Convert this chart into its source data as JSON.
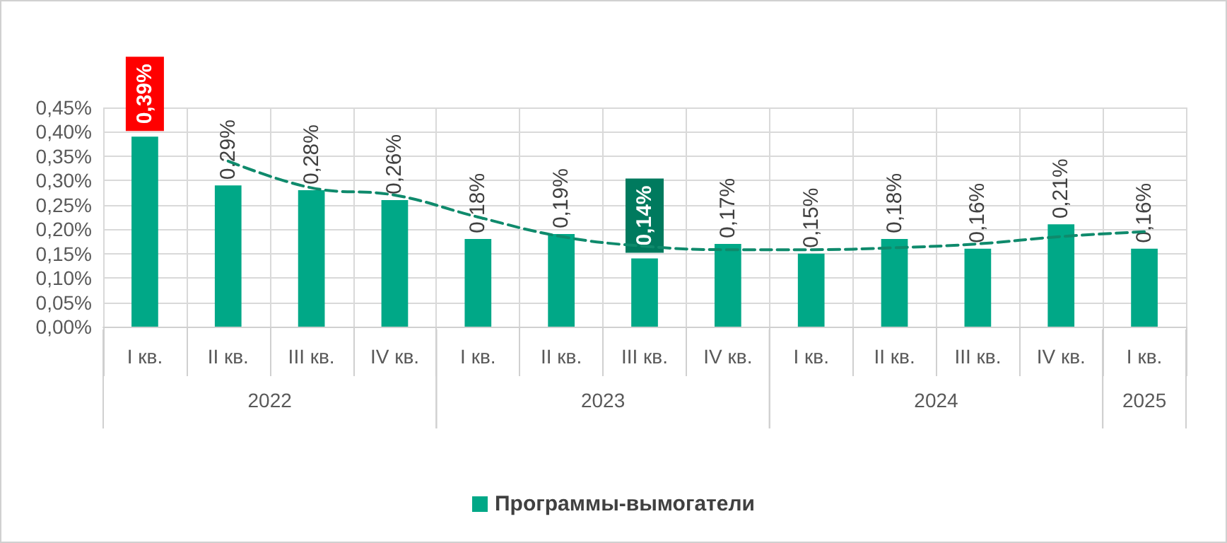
{
  "chart_data": {
    "type": "bar",
    "categories": [
      "I кв.",
      "II кв.",
      "III кв.",
      "IV кв.",
      "I кв.",
      "II кв.",
      "III кв.",
      "IV кв.",
      "I кв.",
      "II кв.",
      "III кв.",
      "IV кв.",
      "I кв."
    ],
    "series": [
      {
        "name": "Программы-вымогатели",
        "color": "#00a887",
        "values": [
          0.39,
          0.29,
          0.28,
          0.26,
          0.18,
          0.19,
          0.14,
          0.17,
          0.15,
          0.18,
          0.16,
          0.21,
          0.16
        ],
        "value_labels": [
          "0,39%",
          "0,29%",
          "0,28%",
          "0,26%",
          "0,18%",
          "0,19%",
          "0,14%",
          "0,17%",
          "0,15%",
          "0,18%",
          "0,16%",
          "0,21%",
          "0,16%"
        ]
      },
      {
        "type": "line",
        "color": "#0f8a6c",
        "line_style": "dashed",
        "marker": "none",
        "values": [
          null,
          0.34,
          0.285,
          0.27,
          0.225,
          0.185,
          0.165,
          0.158,
          0.158,
          0.162,
          0.17,
          0.185,
          0.195
        ]
      }
    ],
    "ylim": [
      0,
      0.45
    ],
    "yticks": [
      {
        "value": 0,
        "label": "0,00%"
      },
      {
        "value": 0.05,
        "label": "0,05%"
      },
      {
        "value": 0.1,
        "label": "0,10%"
      },
      {
        "value": 0.15,
        "label": "0,15%"
      },
      {
        "value": 0.2,
        "label": "0,20%"
      },
      {
        "value": 0.25,
        "label": "0,25%"
      },
      {
        "value": 0.3,
        "label": "0,30%"
      },
      {
        "value": 0.35,
        "label": "0,35%"
      },
      {
        "value": 0.4,
        "label": "0,40%"
      },
      {
        "value": 0.45,
        "label": "0,45%"
      }
    ],
    "annotations": [
      "2022",
      "2023",
      "2024",
      "2025"
    ],
    "grid": true,
    "legend": "bottom"
  }
}
